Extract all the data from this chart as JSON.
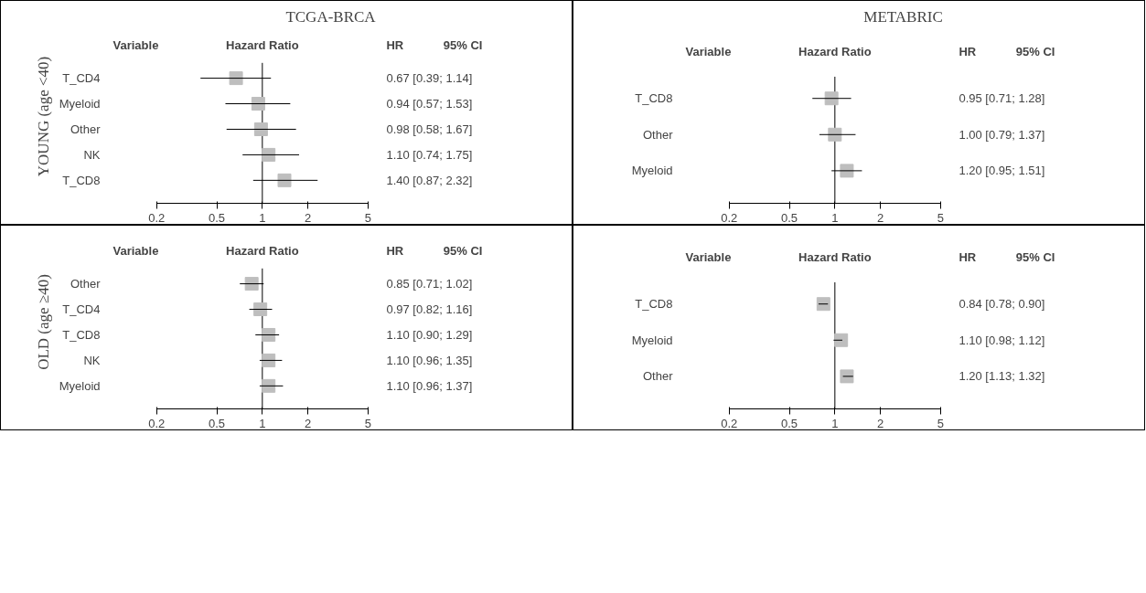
{
  "chart_data": [
    {
      "type": "scatter",
      "orientation": "horizontal",
      "title": "TCGA-BRCA",
      "ylabel": "YOUNG (age <40)",
      "log": "x",
      "marker": "square",
      "color": "#bebebe",
      "categories": [
        "T_CD4",
        "Myeloid",
        "Other",
        "NK",
        "T_CD8"
      ],
      "values": [
        0.67,
        0.94,
        0.98,
        1.1,
        1.4
      ],
      "errors": [
        [
          0.39,
          1.14
        ],
        [
          0.57,
          1.53
        ],
        [
          0.58,
          1.67
        ],
        [
          0.74,
          1.75
        ],
        [
          0.87,
          2.32
        ]
      ],
      "value_labels": [
        "0.67 [0.39; 1.14]",
        "0.94 [0.57; 1.53]",
        "0.98 [0.58; 1.67]",
        "1.10 [0.74; 1.75]",
        "1.40 [0.87; 2.32]"
      ],
      "xlim": [
        0.2,
        5
      ],
      "xticks": [
        0.2,
        0.5,
        1,
        2,
        5
      ],
      "ref_lines": [
        {
          "axis": "x",
          "value": 1,
          "color": "#000000"
        }
      ],
      "annotations": [
        "Variable",
        "Hazard Ratio",
        "HR",
        "95% CI"
      ]
    },
    {
      "type": "scatter",
      "orientation": "horizontal",
      "title": "METABRIC",
      "log": "x",
      "marker": "square",
      "color": "#bebebe",
      "categories": [
        "T_CD8",
        "Other",
        "Myeloid"
      ],
      "values": [
        0.95,
        1.0,
        1.2
      ],
      "errors": [
        [
          0.71,
          1.28
        ],
        [
          0.79,
          1.37
        ],
        [
          0.95,
          1.51
        ]
      ],
      "value_labels": [
        "0.95 [0.71; 1.28]",
        "1.00 [0.79; 1.37]",
        "1.20 [0.95; 1.51]"
      ],
      "xlim": [
        0.2,
        5
      ],
      "xticks": [
        0.2,
        0.5,
        1,
        2,
        5
      ],
      "ref_lines": [
        {
          "axis": "x",
          "value": 1,
          "color": "#000000"
        }
      ],
      "annotations": [
        "Variable",
        "Hazard Ratio",
        "HR",
        "95% CI"
      ]
    },
    {
      "type": "scatter",
      "orientation": "horizontal",
      "ylabel": "OLD (age ≥40)",
      "log": "x",
      "marker": "square",
      "color": "#bebebe",
      "categories": [
        "Other",
        "T_CD4",
        "T_CD8",
        "NK",
        "Myeloid"
      ],
      "values": [
        0.85,
        0.97,
        1.1,
        1.1,
        1.1
      ],
      "errors": [
        [
          0.71,
          1.02
        ],
        [
          0.82,
          1.16
        ],
        [
          0.9,
          1.29
        ],
        [
          0.96,
          1.35
        ],
        [
          0.96,
          1.37
        ]
      ],
      "value_labels": [
        "0.85 [0.71; 1.02]",
        "0.97 [0.82; 1.16]",
        "1.10 [0.90; 1.29]",
        "1.10 [0.96; 1.35]",
        "1.10 [0.96; 1.37]"
      ],
      "xlim": [
        0.2,
        5
      ],
      "xticks": [
        0.2,
        0.5,
        1,
        2,
        5
      ],
      "ref_lines": [
        {
          "axis": "x",
          "value": 1,
          "color": "#000000"
        }
      ],
      "annotations": [
        "Variable",
        "Hazard Ratio",
        "HR",
        "95% CI"
      ]
    },
    {
      "type": "scatter",
      "orientation": "horizontal",
      "log": "x",
      "marker": "square",
      "color": "#bebebe",
      "categories": [
        "T_CD8",
        "Myeloid",
        "Other"
      ],
      "values": [
        0.84,
        1.1,
        1.2
      ],
      "errors": [
        [
          0.78,
          0.9
        ],
        [
          0.98,
          1.12
        ],
        [
          1.13,
          1.32
        ]
      ],
      "value_labels": [
        "0.84 [0.78; 0.90]",
        "1.10 [0.98; 1.12]",
        "1.20 [1.13; 1.32]"
      ],
      "xlim": [
        0.2,
        5
      ],
      "xticks": [
        0.2,
        0.5,
        1,
        2,
        5
      ],
      "ref_lines": [
        {
          "axis": "x",
          "value": 1,
          "color": "#000000"
        }
      ],
      "annotations": [
        "Variable",
        "Hazard Ratio",
        "HR",
        "95% CI"
      ]
    }
  ]
}
